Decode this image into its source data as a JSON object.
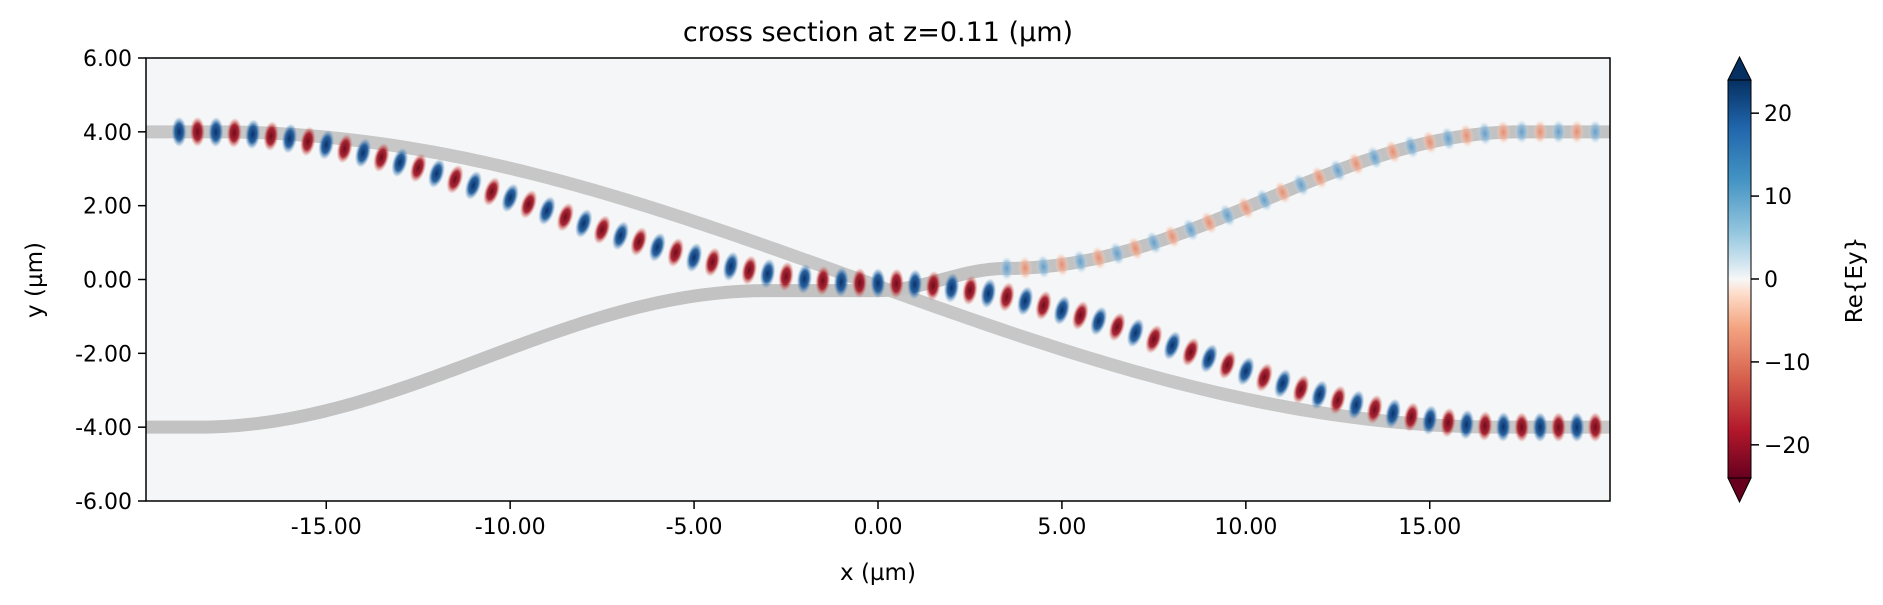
{
  "chart_data": {
    "type": "heatmap",
    "title": "cross section at z=0.11 (µm)",
    "xlabel": "x (µm)",
    "ylabel": "y (µm)",
    "xlim": [
      -19.9,
      19.9
    ],
    "ylim": [
      -6.0,
      6.0
    ],
    "x_ticks": [
      "-15.00",
      "-10.00",
      "-5.00",
      "0.00",
      "5.00",
      "10.00",
      "15.00"
    ],
    "x_tick_values": [
      -15,
      -10,
      -5,
      0,
      5,
      10,
      15
    ],
    "y_ticks": [
      "6.00",
      "4.00",
      "2.00",
      "0.00",
      "-2.00",
      "-4.00",
      "-6.00"
    ],
    "y_tick_values": [
      6,
      4,
      2,
      0,
      -2,
      -4,
      -6
    ],
    "colorbar": {
      "label": "Re{Ey}",
      "range": [
        -24,
        24
      ],
      "ticks": [
        "20",
        "10",
        "0",
        "−10",
        "−20"
      ],
      "tick_values": [
        20,
        10,
        0,
        -10,
        -20
      ],
      "colormap": "RdBu",
      "extend": "both"
    },
    "structures": {
      "description_free": true,
      "color": "#c2c2c2",
      "waveguide_a": {
        "y_start": -4.0,
        "y_end": 4.0,
        "bend_center_x": 0.0,
        "start_x": -19.9,
        "end_x": 19.9
      }
    },
    "field": {
      "main_path": {
        "y_start": 4.0,
        "y_end": -4.0,
        "x_start": -19.0,
        "x_end": 19.5,
        "amplitude": 22
      },
      "coupled_path": {
        "y_start": 0.3,
        "y_end": 4.0,
        "x_start": 3.5,
        "x_end": 19.9,
        "amplitude": 10
      },
      "period_um": 0.5
    },
    "colors": {
      "positive": "#0b3b6e",
      "negative": "#8a0f1f",
      "background": "#f5f6f7",
      "waveguide": "#c2c2c2"
    }
  }
}
